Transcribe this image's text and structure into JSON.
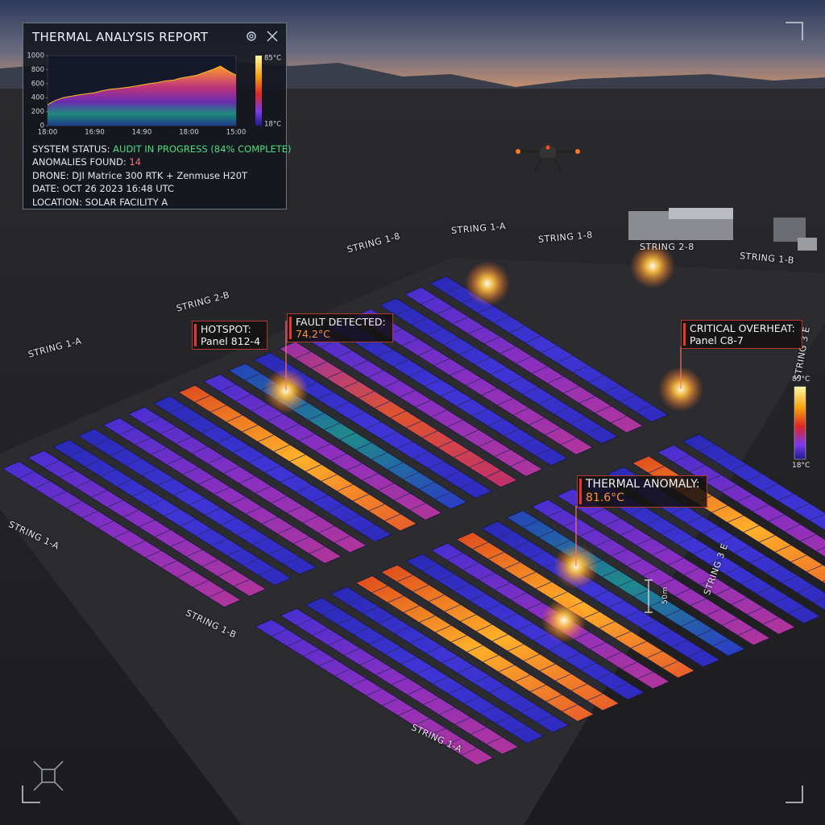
{
  "report": {
    "title": "THERMAL ANALYSIS REPORT",
    "chart": {
      "type": "area",
      "ylim": [
        0,
        1000
      ],
      "yticks": [
        0,
        200,
        400,
        600,
        800,
        1000
      ],
      "xlabels": [
        "18:00",
        "16:90",
        "14:90",
        "18:00",
        "15:00"
      ],
      "values": [
        300,
        360,
        400,
        420,
        440,
        455,
        470,
        500,
        520,
        530,
        545,
        560,
        580,
        600,
        615,
        640,
        650,
        680,
        700,
        720,
        760,
        800,
        850,
        780,
        720
      ],
      "colorbar": {
        "max": "85°C",
        "min": "18°C"
      }
    },
    "status_label": "SYSTEM STATUS:",
    "status_value": "AUDIT IN PROGRESS (84% COMPLETE)",
    "anomalies_label": "ANOMALIES FOUND:",
    "anomalies_value": "14",
    "lines": [
      "DRONE: DJI Matrice 300 RTK + Zenmuse H20T",
      "DATE: OCT 26 2023 16:48 UTC",
      "LOCATION: SOLAR FACILITY A"
    ]
  },
  "callouts": [
    {
      "title": "HOTSPOT:",
      "detail": "Panel 812-4"
    },
    {
      "title": "FAULT DETECTED:",
      "detail": "74.2°C"
    },
    {
      "title": "CRITICAL OVERHEAT:",
      "detail": "Panel C8-7"
    },
    {
      "title": "THERMAL ANOMALY:",
      "detail": "81.6°C"
    }
  ],
  "strings": [
    "STRING 1-A",
    "STRING 1-8",
    "STRING 1-8",
    "STRING 2-8",
    "STRING 1-B",
    "STRING 2-B",
    "STRING 1-A",
    "STRING 3 E",
    "STRING 1-A",
    "STRING 1-B",
    "STRING 1-A",
    "STRING 3 E"
  ],
  "scale": "50m",
  "legend": {
    "max": "85°C",
    "min": "18°C"
  }
}
